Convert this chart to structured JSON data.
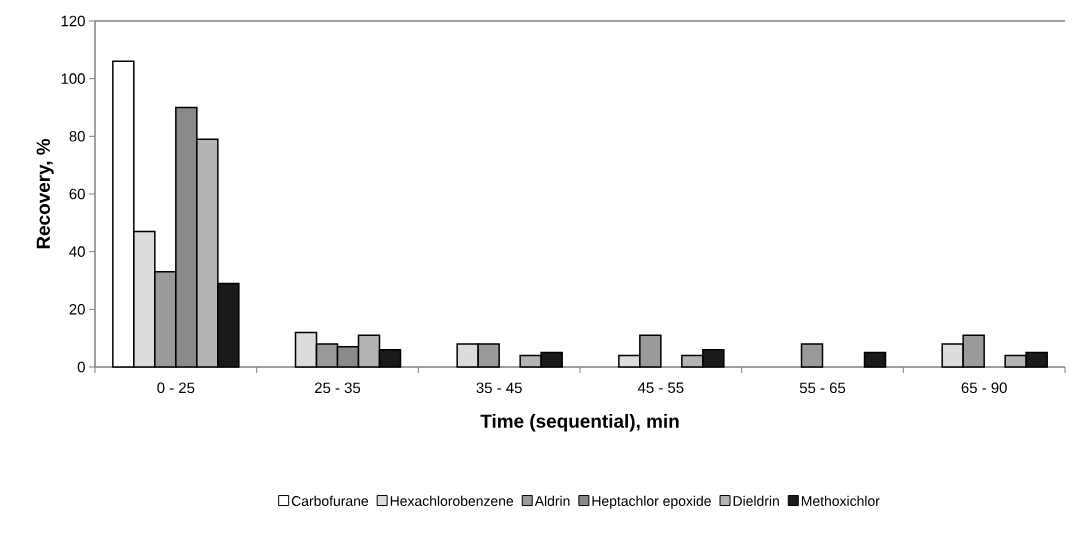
{
  "chart_data": {
    "type": "bar",
    "xlabel": "Time (sequential), min",
    "ylabel": "Recovery, %",
    "categories": [
      "0 - 25",
      "25 - 35",
      "35 - 45",
      "45 - 55",
      "55 - 65",
      "65 - 90"
    ],
    "series": [
      {
        "name": "Carbofurane",
        "color": "#ffffff",
        "values": [
          106,
          null,
          null,
          null,
          null,
          null
        ]
      },
      {
        "name": "Hexachlorobenzene",
        "color": "#dcdcdc",
        "values": [
          47,
          12,
          8,
          4,
          null,
          8
        ]
      },
      {
        "name": "Aldrin",
        "color": "#9a9a9a",
        "values": [
          33,
          8,
          8,
          11,
          8,
          11
        ]
      },
      {
        "name": "Heptachlor epoxide",
        "color": "#8a8a8a",
        "values": [
          90,
          7,
          null,
          null,
          null,
          null
        ]
      },
      {
        "name": "Dieldrin",
        "color": "#b4b4b4",
        "values": [
          79,
          11,
          4,
          4,
          null,
          4
        ]
      },
      {
        "name": "Methoxichlor",
        "color": "#1a1a1a",
        "values": [
          29,
          6,
          5,
          6,
          5,
          5
        ]
      }
    ],
    "ylim": [
      0,
      120
    ],
    "yticks": [
      0,
      20,
      40,
      60,
      80,
      100,
      120
    ],
    "grid": false,
    "legend": "bottom"
  }
}
